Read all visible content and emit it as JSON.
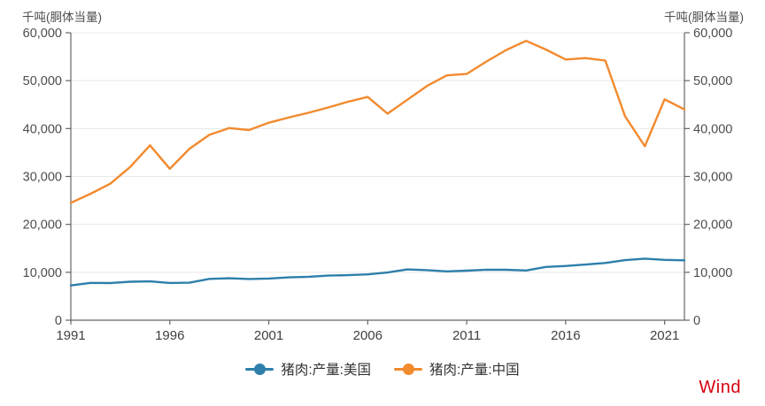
{
  "chart_data": {
    "type": "line",
    "title": "",
    "unit_left": "千吨(胴体当量)",
    "unit_right": "千吨(胴体当量)",
    "x_label": "",
    "y_label_left": "千吨(胴体当量)",
    "y_label_right": "千吨(胴体当量)",
    "x": [
      1991,
      1992,
      1993,
      1994,
      1995,
      1996,
      1997,
      1998,
      1999,
      2000,
      2001,
      2002,
      2003,
      2004,
      2005,
      2006,
      2007,
      2008,
      2009,
      2010,
      2011,
      2012,
      2013,
      2014,
      2015,
      2016,
      2017,
      2018,
      2019,
      2020,
      2021,
      2022
    ],
    "series": [
      {
        "id": "us",
        "name": "猪肉:产量:美国",
        "color": "#2e7fab",
        "values": [
          7250,
          7800,
          7750,
          8030,
          8100,
          7770,
          7830,
          8620,
          8760,
          8600,
          8690,
          8930,
          9060,
          9310,
          9390,
          9560,
          9960,
          10600,
          10440,
          10190,
          10330,
          10550,
          10520,
          10370,
          11120,
          11320,
          11610,
          11940,
          12540,
          12850,
          12600,
          12500
        ]
      },
      {
        "id": "china",
        "name": "猪肉:产量:中国",
        "color": "#f28a2e",
        "values": [
          24500,
          26400,
          28500,
          32000,
          36500,
          31600,
          35800,
          38700,
          40100,
          39700,
          41200,
          42300,
          43300,
          44400,
          45600,
          46600,
          43100,
          46000,
          48900,
          51100,
          51400,
          54000,
          56400,
          58300,
          56500,
          54400,
          54700,
          54200,
          42600,
          36300,
          46100,
          44000
        ]
      }
    ],
    "ylim": [
      0,
      60000
    ],
    "xlim": [
      1991,
      2022
    ],
    "y_ticks": [
      {
        "value": 0,
        "label": "0"
      },
      {
        "value": 10000,
        "label": "10,000"
      },
      {
        "value": 20000,
        "label": "20,000"
      },
      {
        "value": 30000,
        "label": "30,000"
      },
      {
        "value": 40000,
        "label": "40,000"
      },
      {
        "value": 50000,
        "label": "50,000"
      },
      {
        "value": 60000,
        "label": "60,000"
      }
    ],
    "x_ticks": [
      {
        "value": 1991,
        "label": "1991"
      },
      {
        "value": 1996,
        "label": "1996"
      },
      {
        "value": 2001,
        "label": "2001"
      },
      {
        "value": 2006,
        "label": "2006"
      },
      {
        "value": 2011,
        "label": "2011"
      },
      {
        "value": 2016,
        "label": "2016"
      },
      {
        "value": 2021,
        "label": "2021"
      }
    ],
    "grid": "horizontal",
    "legend_position": "bottom-center",
    "dual_axis": true
  },
  "branding": {
    "logo_text": "Wind",
    "logo_color": "#d7000f"
  },
  "colors": {
    "background": "#ffffff",
    "axis": "#666666",
    "gridline": "#e8e8e8",
    "y_tick_label": "#4d4d4d",
    "x_tick_label": "#404040",
    "legend_text": "#333333"
  }
}
